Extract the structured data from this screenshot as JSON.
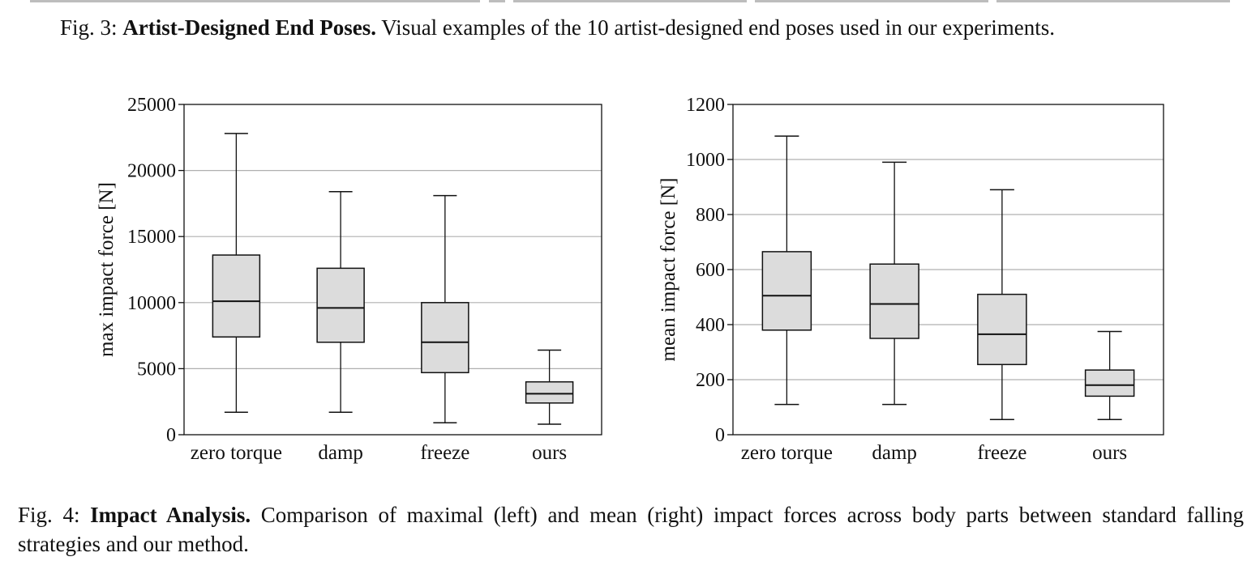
{
  "captions": {
    "fig3": {
      "label": "Fig. 3: ",
      "title": "Artist-Designed End Poses.",
      "text": " Visual examples of the 10 artist-designed end poses used in our experiments."
    },
    "fig4": {
      "label": "Fig. 4: ",
      "title": "Impact Analysis.",
      "text": " Comparison of maximal (left) and mean (right) impact forces across body parts between standard falling strategies and our method."
    }
  },
  "colors": {
    "box_fill": "#dcdcdc",
    "box_stroke": "#111111",
    "grid": "#b0b0b0"
  },
  "chart_data": [
    {
      "type": "box",
      "ylabel": "max impact force [N]",
      "ylim": [
        0,
        25000
      ],
      "yticks": [
        0,
        5000,
        10000,
        15000,
        20000,
        25000
      ],
      "grid": "y",
      "categories": [
        "zero torque",
        "damp",
        "freeze",
        "ours"
      ],
      "boxes": [
        {
          "whisker_low": 1700,
          "q1": 7400,
          "median": 10100,
          "q3": 13600,
          "whisker_high": 22800
        },
        {
          "whisker_low": 1700,
          "q1": 7000,
          "median": 9600,
          "q3": 12600,
          "whisker_high": 18400
        },
        {
          "whisker_low": 900,
          "q1": 4700,
          "median": 7000,
          "q3": 10000,
          "whisker_high": 18100
        },
        {
          "whisker_low": 800,
          "q1": 2400,
          "median": 3100,
          "q3": 4000,
          "whisker_high": 6400
        }
      ]
    },
    {
      "type": "box",
      "ylabel": "mean impact force [N]",
      "ylim": [
        0,
        1200
      ],
      "yticks": [
        0,
        200,
        400,
        600,
        800,
        1000,
        1200
      ],
      "grid": "y",
      "categories": [
        "zero torque",
        "damp",
        "freeze",
        "ours"
      ],
      "boxes": [
        {
          "whisker_low": 110,
          "q1": 380,
          "median": 505,
          "q3": 665,
          "whisker_high": 1085
        },
        {
          "whisker_low": 110,
          "q1": 350,
          "median": 475,
          "q3": 620,
          "whisker_high": 990
        },
        {
          "whisker_low": 55,
          "q1": 255,
          "median": 365,
          "q3": 510,
          "whisker_high": 890
        },
        {
          "whisker_low": 55,
          "q1": 140,
          "median": 180,
          "q3": 235,
          "whisker_high": 375
        }
      ]
    }
  ]
}
